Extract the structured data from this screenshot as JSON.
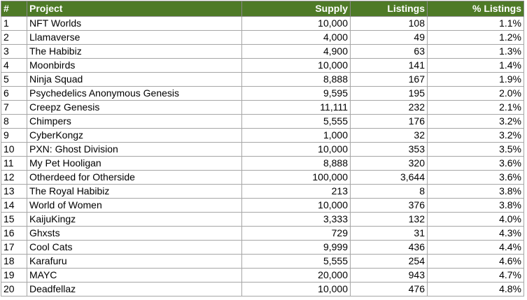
{
  "table": {
    "header": [
      "#",
      "Project",
      "Supply",
      "Listings",
      "% Listings"
    ],
    "rows": [
      [
        "1",
        "NFT Worlds",
        "10,000",
        "108",
        "1.1%"
      ],
      [
        "2",
        "Llamaverse",
        "4,000",
        "49",
        "1.2%"
      ],
      [
        "3",
        "The Habibiz",
        "4,900",
        "63",
        "1.3%"
      ],
      [
        "4",
        "Moonbirds",
        "10,000",
        "141",
        "1.4%"
      ],
      [
        "5",
        "Ninja Squad",
        "8,888",
        "167",
        "1.9%"
      ],
      [
        "6",
        "Psychedelics Anonymous Genesis",
        "9,595",
        "195",
        "2.0%"
      ],
      [
        "7",
        "Creepz Genesis",
        "11,111",
        "232",
        "2.1%"
      ],
      [
        "8",
        "Chimpers",
        "5,555",
        "176",
        "3.2%"
      ],
      [
        "9",
        "CyberKongz",
        "1,000",
        "32",
        "3.2%"
      ],
      [
        "10",
        "PXN: Ghost Division",
        "10,000",
        "353",
        "3.5%"
      ],
      [
        "11",
        "My Pet Hooligan",
        "8,888",
        "320",
        "3.6%"
      ],
      [
        "12",
        "Otherdeed for Otherside",
        "100,000",
        "3,644",
        "3.6%"
      ],
      [
        "13",
        "The Royal Habibiz",
        "213",
        "8",
        "3.8%"
      ],
      [
        "14",
        "World of Women",
        "10,000",
        "376",
        "3.8%"
      ],
      [
        "15",
        "KaijuKingz",
        "3,333",
        "132",
        "4.0%"
      ],
      [
        "16",
        "Ghxsts",
        "729",
        "31",
        "4.3%"
      ],
      [
        "17",
        "Cool Cats",
        "9,999",
        "436",
        "4.4%"
      ],
      [
        "18",
        "Karafuru",
        "5,555",
        "254",
        "4.6%"
      ],
      [
        "19",
        "MAYC",
        "20,000",
        "943",
        "4.7%"
      ],
      [
        "20",
        "Deadfellaz",
        "10,000",
        "476",
        "4.8%"
      ]
    ]
  }
}
